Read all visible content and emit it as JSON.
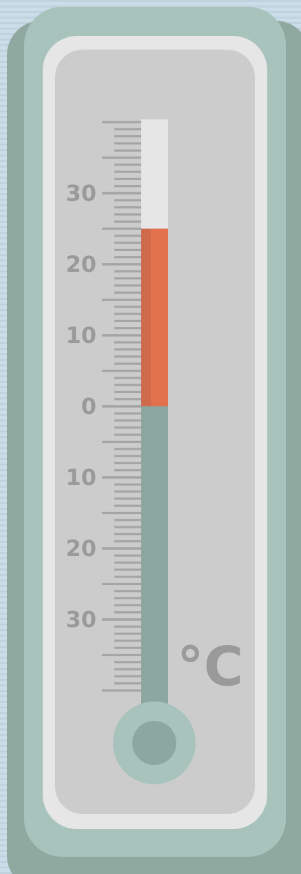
{
  "scale": {
    "lim": [
      -40,
      40
    ],
    "ticks": [
      30,
      20,
      10,
      0,
      {
        "value": -10,
        "label": "10"
      },
      {
        "value": -20,
        "label": "20"
      },
      {
        "value": -30,
        "label": "30"
      }
    ]
  },
  "reading": 25,
  "unit": "°C"
}
